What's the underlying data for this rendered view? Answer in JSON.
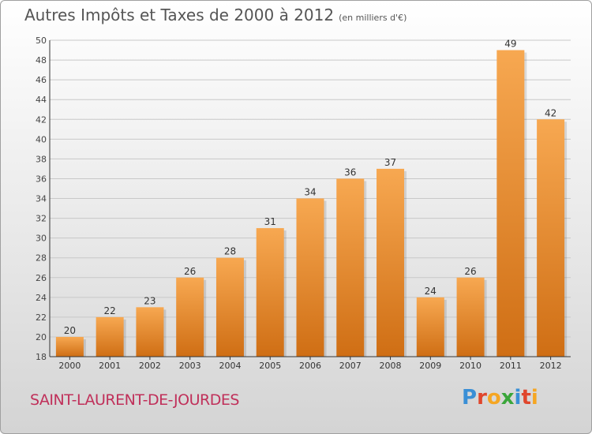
{
  "title": "Autres Impôts et Taxes de 2000 à 2012",
  "unit_note": "(en milliers d'€)",
  "town": "SAINT-LAURENT-DE-JOURDES",
  "logo": {
    "text": "Proxiti",
    "letters": [
      "P",
      "r",
      "o",
      "x",
      "i",
      "t",
      "i"
    ],
    "colors": [
      "#3a8fd6",
      "#e0462c",
      "#f5a623",
      "#3aa63a",
      "#3a8fd6",
      "#e0462c",
      "#f5a623"
    ]
  },
  "colors": {
    "bar_top": "#f7a851",
    "bar_bottom": "#cf6e14",
    "grid": "#c8c8c8",
    "axis": "#333333"
  },
  "chart_data": {
    "type": "bar",
    "categories": [
      "2000",
      "2001",
      "2002",
      "2003",
      "2004",
      "2005",
      "2006",
      "2007",
      "2008",
      "2009",
      "2010",
      "2011",
      "2012"
    ],
    "values": [
      20,
      22,
      23,
      26,
      28,
      31,
      34,
      36,
      37,
      24,
      26,
      49,
      42
    ],
    "ylim": [
      18,
      50
    ],
    "yticks": [
      18,
      20,
      22,
      24,
      26,
      28,
      30,
      32,
      34,
      36,
      38,
      40,
      42,
      44,
      46,
      48,
      50
    ],
    "grid": true
  }
}
